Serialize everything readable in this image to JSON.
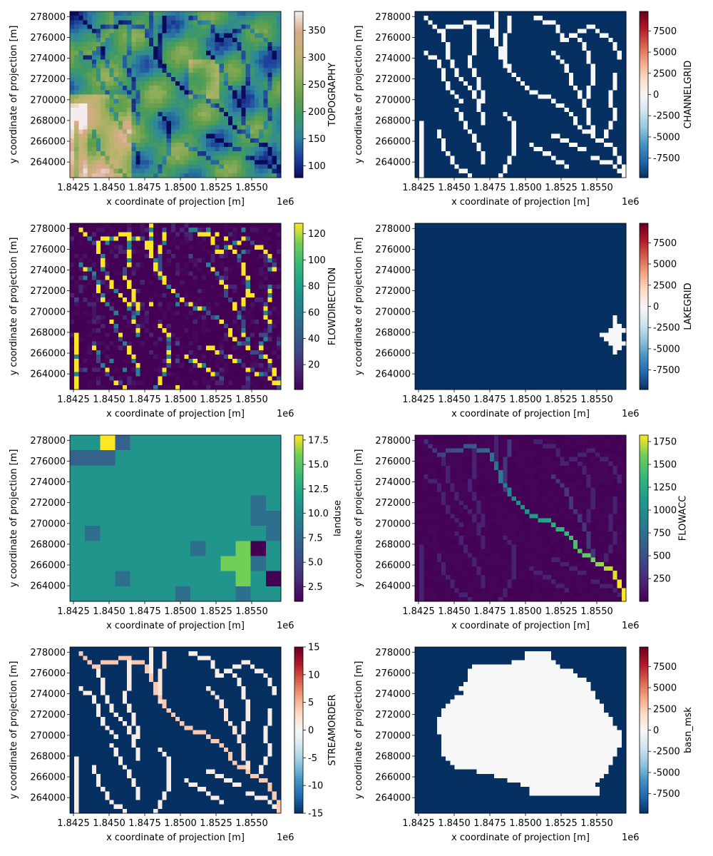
{
  "figure": {
    "shared_x_axis": {
      "label": "x coordinate of projection [m]",
      "offset_text": "1e6",
      "ticks": [
        "1.8425",
        "1.8450",
        "1.8475",
        "1.8500",
        "1.8525",
        "1.8550"
      ],
      "tick_values": [
        1.8425,
        1.845,
        1.8475,
        1.85,
        1.8525,
        1.855
      ],
      "range": [
        1.84225,
        1.85705
      ]
    },
    "shared_y_axis": {
      "label": "y coordinate of projection [m]",
      "ticks": [
        "264000",
        "266000",
        "268000",
        "270000",
        "272000",
        "274000",
        "276000",
        "278000"
      ],
      "tick_values": [
        264000,
        266000,
        268000,
        270000,
        272000,
        274000,
        276000,
        278000
      ],
      "range": [
        262500,
        278500
      ]
    }
  },
  "chart_data": [
    {
      "type": "heatmap",
      "variable": "TOPOGRAPHY",
      "colorbar_label": "TOPOGRAPHY",
      "colormap": "gist_earth",
      "colorbar_ticks": [
        "100",
        "150",
        "200",
        "250",
        "300",
        "350"
      ],
      "colorbar_tick_values": [
        100,
        150,
        200,
        250,
        300,
        350
      ],
      "vmin": 78,
      "vmax": 385,
      "description": "Elevation grid; low blue values in northwest corner and along southeast valley, high tan values on western ridges",
      "cmap_stops": [
        [
          "#0b0b5c",
          0
        ],
        [
          "#1d3f9c",
          0.12
        ],
        [
          "#2d85a0",
          0.25
        ],
        [
          "#3f9a63",
          0.38
        ],
        [
          "#6aa14c",
          0.5
        ],
        [
          "#9bb160",
          0.62
        ],
        [
          "#c2b272",
          0.75
        ],
        [
          "#d8a98a",
          0.88
        ],
        [
          "#f4ecec",
          1
        ]
      ]
    },
    {
      "type": "heatmap",
      "variable": "CHANNELGRID",
      "colorbar_label": "CHANNELGRID",
      "colormap": "RdBu_r",
      "colorbar_ticks": [
        "-7500",
        "-5000",
        "-2500",
        "0",
        "2500",
        "5000",
        "7500"
      ],
      "colorbar_tick_values": [
        -7500,
        -5000,
        -2500,
        0,
        2500,
        5000,
        7500
      ],
      "vmin": -9800,
      "vmax": 9800,
      "description": "Binary channel mask: background -9999 (dark blue), channel cells 0 (white)"
    },
    {
      "type": "heatmap",
      "variable": "FLOWDIRECTION",
      "colorbar_label": "FLOWDIRECTION",
      "colormap": "viridis",
      "colorbar_ticks": [
        "20",
        "40",
        "60",
        "80",
        "100",
        "120"
      ],
      "colorbar_tick_values": [
        20,
        40,
        60,
        80,
        100,
        120
      ],
      "vmin": 1,
      "vmax": 128,
      "levels": [
        1,
        2,
        4,
        8,
        16,
        32,
        64,
        128
      ],
      "description": "D8 flow direction codes"
    },
    {
      "type": "heatmap",
      "variable": "LAKEGRID",
      "colorbar_label": "LAKEGRID",
      "colormap": "RdBu_r",
      "colorbar_ticks": [
        "-7500",
        "-5000",
        "-2500",
        "0",
        "2500",
        "5000",
        "7500"
      ],
      "colorbar_tick_values": [
        -7500,
        -5000,
        -2500,
        0,
        2500,
        5000,
        7500
      ],
      "vmin": -9800,
      "vmax": 9800,
      "description": "Single lake (value 0) near x=1.8545e6, y=266500; rest -9999"
    },
    {
      "type": "heatmap",
      "variable": "landuse",
      "colorbar_label": "landuse",
      "colormap": "viridis",
      "colorbar_ticks": [
        "2.5",
        "5.0",
        "7.5",
        "10.0",
        "12.5",
        "15.0",
        "17.5"
      ],
      "colorbar_tick_values": [
        2.5,
        5.0,
        7.5,
        10.0,
        12.5,
        15.0,
        17.5
      ],
      "vmin": 1,
      "vmax": 18,
      "description": "Dominant land use class 11 with patches of 7, 8, 16, 18 and 1"
    },
    {
      "type": "heatmap",
      "variable": "FLOWACC",
      "colorbar_label": "FLOWACC",
      "colormap": "viridis",
      "colorbar_ticks": [
        "250",
        "500",
        "750",
        "1000",
        "1250",
        "1500",
        "1750"
      ],
      "colorbar_tick_values": [
        250,
        500,
        750,
        1000,
        1250,
        1500,
        1750
      ],
      "vmin": 1,
      "vmax": 1820,
      "description": "Flow accumulation increasing along main channel to ~1800 at southeast outlet"
    },
    {
      "type": "heatmap",
      "variable": "STREAMORDER",
      "colorbar_label": "STREAMORDER",
      "colormap": "RdBu_r",
      "colorbar_ticks": [
        "-15",
        "-10",
        "-5",
        "0",
        "5",
        "10",
        "15"
      ],
      "colorbar_tick_values": [
        -15,
        -10,
        -5,
        0,
        5,
        10,
        15
      ],
      "vmin": -15,
      "vmax": 15,
      "description": "Stream order 1-4 on channel cells, background -15 (dark blue)"
    },
    {
      "type": "heatmap",
      "variable": "basn_msk",
      "colorbar_label": "basn_msk",
      "colormap": "RdBu_r",
      "colorbar_ticks": [
        "-7500",
        "-5000",
        "-2500",
        "0",
        "2500",
        "5000",
        "7500"
      ],
      "colorbar_tick_values": [
        -7500,
        -5000,
        -2500,
        0,
        2500,
        5000,
        7500
      ],
      "vmin": -9800,
      "vmax": 9800,
      "description": "Basin mask: basin cells 0 (white), outside -9999 (dark blue)"
    }
  ]
}
